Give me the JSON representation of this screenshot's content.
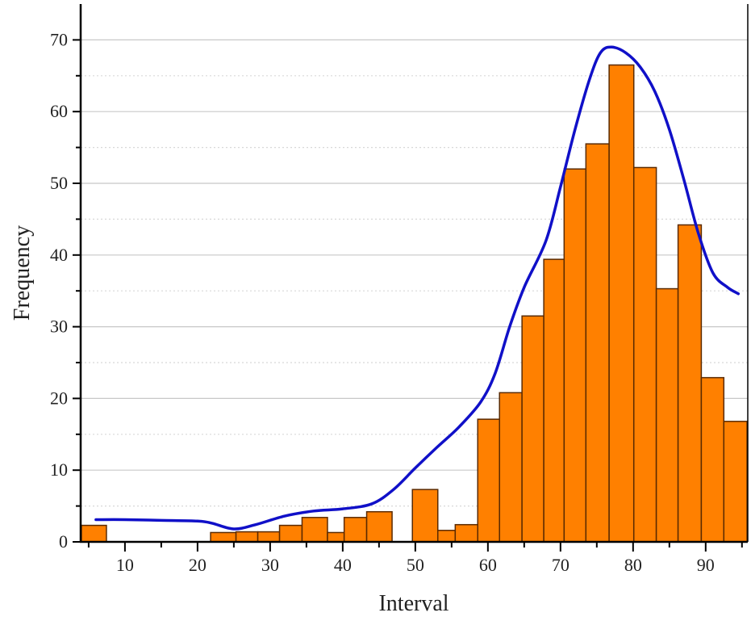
{
  "chart_data": {
    "type": "bar",
    "title": "",
    "xlabel": "Interval",
    "ylabel": "Frequency",
    "xlim": [
      3.9,
      95.8
    ],
    "ylim": [
      0,
      75
    ],
    "xticks": [
      10,
      20,
      30,
      40,
      50,
      60,
      70,
      80,
      90
    ],
    "yticks": [
      0,
      10,
      20,
      30,
      40,
      50,
      60,
      70
    ],
    "grid": {
      "major": "solid",
      "minor": "dotted"
    },
    "colors": {
      "bar": "#ff8000",
      "bar_edge": "#5a2a00",
      "curve": "#1010c8"
    },
    "bins": [
      {
        "x0": 4.0,
        "x1": 7.45,
        "value": 2.3
      },
      {
        "x0": 21.8,
        "x1": 25.3,
        "value": 1.3
      },
      {
        "x0": 25.3,
        "x1": 28.3,
        "value": 1.4
      },
      {
        "x0": 28.3,
        "x1": 31.3,
        "value": 1.4
      },
      {
        "x0": 31.3,
        "x1": 34.4,
        "value": 2.3
      },
      {
        "x0": 34.4,
        "x1": 37.9,
        "value": 3.4
      },
      {
        "x0": 37.9,
        "x1": 40.2,
        "value": 1.3
      },
      {
        "x0": 40.2,
        "x1": 43.3,
        "value": 3.4
      },
      {
        "x0": 43.3,
        "x1": 46.8,
        "value": 4.2
      },
      {
        "x0": 49.6,
        "x1": 53.1,
        "value": 7.3
      },
      {
        "x0": 53.1,
        "x1": 55.5,
        "value": 1.6
      },
      {
        "x0": 55.5,
        "x1": 58.6,
        "value": 2.4
      },
      {
        "x0": 58.6,
        "x1": 61.6,
        "value": 17.1
      },
      {
        "x0": 61.6,
        "x1": 64.7,
        "value": 20.8
      },
      {
        "x0": 64.7,
        "x1": 67.7,
        "value": 31.5
      },
      {
        "x0": 67.7,
        "x1": 70.5,
        "value": 39.4
      },
      {
        "x0": 70.5,
        "x1": 73.5,
        "value": 52.0
      },
      {
        "x0": 73.5,
        "x1": 76.7,
        "value": 55.5
      },
      {
        "x0": 76.7,
        "x1": 80.1,
        "value": 66.5
      },
      {
        "x0": 80.1,
        "x1": 83.2,
        "value": 52.2
      },
      {
        "x0": 83.2,
        "x1": 86.2,
        "value": 35.3
      },
      {
        "x0": 86.2,
        "x1": 89.4,
        "value": 44.2
      },
      {
        "x0": 89.4,
        "x1": 92.5,
        "value": 22.9
      },
      {
        "x0": 92.5,
        "x1": 95.7,
        "value": 16.8
      }
    ],
    "curve": {
      "x": [
        6,
        10,
        15,
        20,
        22,
        25,
        28,
        32,
        36,
        40,
        44,
        47,
        50,
        53,
        56,
        59,
        61,
        63,
        65,
        68,
        70,
        72,
        74,
        75.5,
        77,
        79,
        81,
        83,
        85,
        87,
        89,
        91,
        93,
        94.5
      ],
      "y": [
        3.1,
        3.1,
        3.0,
        2.9,
        2.6,
        1.8,
        2.4,
        3.6,
        4.3,
        4.6,
        5.3,
        7.3,
        10.3,
        13.2,
        16.0,
        19.5,
        23.5,
        30.0,
        35.5,
        42.0,
        49.5,
        57.5,
        64.5,
        68.2,
        69.0,
        68.2,
        66.2,
        62.8,
        57.5,
        50.5,
        43.0,
        37.5,
        35.5,
        34.6
      ]
    }
  }
}
